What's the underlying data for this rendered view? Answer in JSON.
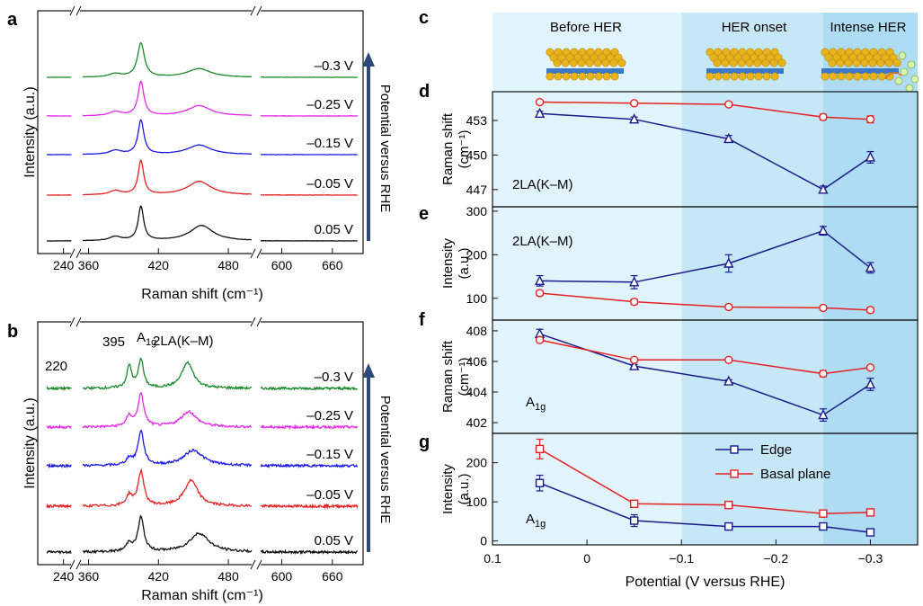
{
  "panel_letters": {
    "a": "a",
    "b": "b",
    "c": "c",
    "d": "d",
    "e": "e",
    "f": "f",
    "g": "g"
  },
  "colors": {
    "green": "#1a8a2a",
    "magenta": "#e626e6",
    "blue": "#1a1ae6",
    "red": "#e62020",
    "black": "#111111",
    "edge": "#1a1a8c",
    "basal": "#e62020",
    "arrow": "#2d4a7a",
    "region_before": "#e2f4fb",
    "region_onset": "#c6e8f6",
    "region_intense": "#aedcf2"
  },
  "spectra": {
    "ylabel": "Intensity (a.u.)",
    "xlabel": "Raman shift (cm⁻¹)",
    "potential_label": "Potential versus RHE",
    "xticks": [
      "240",
      "360",
      "420",
      "480",
      "600",
      "660"
    ],
    "potentials": [
      "–0.3 V",
      "–0.25 V",
      "–0.15 V",
      "–0.05 V",
      "0.05 V"
    ],
    "peak_labels_b": {
      "p220": "220",
      "p395": "395",
      "a1g_main": "A",
      "a1g_sub": "1g",
      "la": "2LA(K–M)"
    }
  },
  "panel_c": {
    "regions": [
      "Before HER",
      "HER onset",
      "Intense HER"
    ]
  },
  "chart_data": [
    {
      "panel": "a",
      "type": "line",
      "xlabel": "Raman shift (cm⁻¹)",
      "ylabel": "Intensity (a.u.)",
      "x_segments": [
        [
          220,
          250
        ],
        [
          355,
          500
        ],
        [
          575,
          690
        ]
      ],
      "xticks": [
        240,
        360,
        420,
        480,
        600,
        660
      ],
      "series": [
        {
          "name": "–0.3 V",
          "color": "#1a8a2a",
          "peaks": [
            [
              383,
              6,
              0.1
            ],
            [
              405,
              3.5,
              1.0
            ],
            [
              455,
              12,
              0.25
            ]
          ]
        },
        {
          "name": "–0.25 V",
          "color": "#e626e6",
          "peaks": [
            [
              383,
              6,
              0.12
            ],
            [
              405,
              3,
              1.0
            ],
            [
              455,
              12,
              0.3
            ]
          ]
        },
        {
          "name": "–0.15 V",
          "color": "#1a1ae6",
          "peaks": [
            [
              383,
              6,
              0.12
            ],
            [
              405,
              3,
              1.0
            ],
            [
              455,
              12,
              0.28
            ]
          ]
        },
        {
          "name": "–0.05 V",
          "color": "#e62020",
          "peaks": [
            [
              383,
              6,
              0.12
            ],
            [
              405,
              2.8,
              1.0
            ],
            [
              455,
              12,
              0.4
            ]
          ]
        },
        {
          "name": "0.05 V",
          "color": "#111111",
          "peaks": [
            [
              383,
              6,
              0.12
            ],
            [
              405,
              2.8,
              1.0
            ],
            [
              457,
              12,
              0.45
            ]
          ]
        }
      ]
    },
    {
      "panel": "b",
      "type": "line",
      "xlabel": "Raman shift (cm⁻¹)",
      "ylabel": "Intensity (a.u.)",
      "x_segments": [
        [
          220,
          250
        ],
        [
          355,
          500
        ],
        [
          575,
          690
        ]
      ],
      "xticks": [
        240,
        360,
        420,
        480,
        600,
        660
      ],
      "series": [
        {
          "name": "–0.3 V",
          "color": "#1a8a2a",
          "peaks": [
            [
              395,
              2.5,
              0.65
            ],
            [
              405,
              2.5,
              0.85
            ],
            [
              445,
              6,
              0.75
            ]
          ]
        },
        {
          "name": "–0.25 V",
          "color": "#e626e6",
          "peaks": [
            [
              395,
              3,
              0.3
            ],
            [
              405,
              3,
              0.95
            ],
            [
              446,
              8,
              0.45
            ]
          ]
        },
        {
          "name": "–0.15 V",
          "color": "#1a1ae6",
          "peaks": [
            [
              395,
              3,
              0.2
            ],
            [
              405,
              3,
              1.0
            ],
            [
              450,
              10,
              0.45
            ]
          ]
        },
        {
          "name": "–0.05 V",
          "color": "#e62020",
          "peaks": [
            [
              395,
              3,
              0.3
            ],
            [
              405,
              3,
              1.0
            ],
            [
              448,
              7,
              0.75
            ]
          ]
        },
        {
          "name": "0.05 V",
          "color": "#111111",
          "peaks": [
            [
              395,
              3,
              0.25
            ],
            [
              405,
              3,
              1.0
            ],
            [
              455,
              10,
              0.55
            ]
          ]
        }
      ]
    },
    {
      "panel": "d",
      "type": "line",
      "ylabel": "Raman shift (cm⁻¹)",
      "annotation": "2LA(K–M)",
      "ylim": [
        445.5,
        455.5
      ],
      "yticks": [
        "447",
        "450",
        "453"
      ],
      "x": [
        0.05,
        -0.05,
        -0.15,
        -0.25,
        -0.3
      ],
      "series": [
        {
          "name": "Edge",
          "color": "#1a1a8c",
          "marker": "triangle",
          "values": [
            453.6,
            453.1,
            451.4,
            447.0,
            449.8
          ],
          "errors": [
            0.2,
            0.2,
            0.3,
            0.3,
            0.5
          ]
        },
        {
          "name": "Basal plane",
          "color": "#e62020",
          "marker": "circle",
          "values": [
            454.6,
            454.5,
            454.4,
            453.3,
            453.1
          ],
          "errors": [
            0.15,
            0.15,
            0.15,
            0.25,
            0.3
          ]
        }
      ]
    },
    {
      "panel": "e",
      "type": "line",
      "ylabel": "Intensity (a.u.)",
      "annotation": "2LA(K–M)",
      "ylim": [
        50,
        310
      ],
      "yticks": [
        "100",
        "200",
        "300"
      ],
      "x": [
        0.05,
        -0.05,
        -0.15,
        -0.25,
        -0.3
      ],
      "series": [
        {
          "name": "Edge",
          "color": "#1a1a8c",
          "marker": "triangle",
          "values": [
            140,
            137,
            180,
            255,
            170
          ],
          "errors": [
            12,
            15,
            20,
            10,
            12
          ]
        },
        {
          "name": "Basal plane",
          "color": "#e62020",
          "marker": "circle",
          "values": [
            112,
            92,
            80,
            78,
            73
          ],
          "errors": [
            6,
            6,
            5,
            5,
            6
          ]
        }
      ]
    },
    {
      "panel": "f",
      "type": "line",
      "ylabel": "Raman shift (cm⁻¹)",
      "annotation": "A1g",
      "ylim": [
        401.3,
        408.7
      ],
      "yticks": [
        "402",
        "404",
        "406",
        "408"
      ],
      "x": [
        0.05,
        -0.05,
        -0.15,
        -0.25,
        -0.3
      ],
      "series": [
        {
          "name": "Edge",
          "color": "#1a1a8c",
          "marker": "triangle",
          "values": [
            407.8,
            405.7,
            404.7,
            402.5,
            404.5
          ],
          "errors": [
            0.3,
            0.1,
            0.1,
            0.4,
            0.4
          ]
        },
        {
          "name": "Basal plane",
          "color": "#e62020",
          "marker": "circle",
          "values": [
            407.4,
            406.1,
            406.1,
            405.2,
            405.6
          ],
          "errors": [
            0.1,
            0.1,
            0.1,
            0.2,
            0.1
          ]
        }
      ]
    },
    {
      "panel": "g",
      "type": "line",
      "ylabel": "Intensity (a.u.)",
      "annotation": "A1g",
      "ylim": [
        -10,
        275
      ],
      "yticks": [
        "0",
        "100",
        "200"
      ],
      "xlabel": "Potential (V versus RHE)",
      "xticks": [
        "0.1",
        "0",
        "−0.1",
        "−0.2",
        "−0.3"
      ],
      "xlim": [
        0.1,
        -0.35
      ],
      "x": [
        0.05,
        -0.05,
        -0.15,
        -0.25,
        -0.3
      ],
      "series": [
        {
          "name": "Edge",
          "color": "#1a1a8c",
          "marker": "square",
          "values": [
            148,
            52,
            37,
            37,
            22
          ],
          "errors": [
            20,
            15,
            5,
            5,
            5
          ]
        },
        {
          "name": "Basal plane",
          "color": "#e62020",
          "marker": "square",
          "values": [
            235,
            95,
            92,
            70,
            73
          ],
          "errors": [
            25,
            8,
            6,
            5,
            5
          ]
        }
      ]
    }
  ]
}
